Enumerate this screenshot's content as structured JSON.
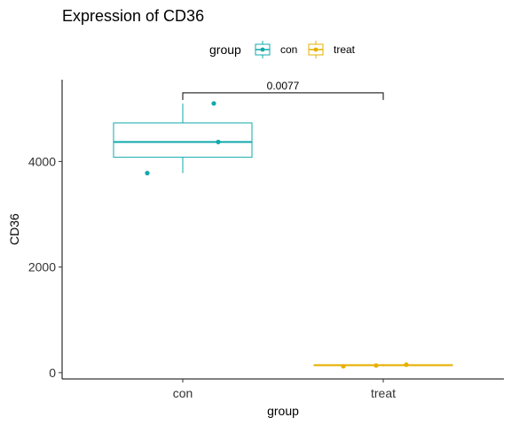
{
  "chart_data": {
    "type": "box",
    "title": "Expression of CD36",
    "xlabel": "group",
    "ylabel": "CD36",
    "categories": [
      "con",
      "treat"
    ],
    "ylim": [
      -120,
      5550
    ],
    "yticks": [
      0,
      2000,
      4000
    ],
    "grid": false,
    "legend": {
      "title": "group",
      "position": "top",
      "entries": [
        "con",
        "treat"
      ]
    },
    "colors": {
      "con": "#12A9AC",
      "treat": "#E6B000"
    },
    "boxes": [
      {
        "name": "con",
        "min": 3780,
        "q1": 4080,
        "median": 4370,
        "q3": 4730,
        "max": 5100
      },
      {
        "name": "treat",
        "min": 120,
        "q1": 135,
        "median": 140,
        "q3": 150,
        "max": 160
      }
    ],
    "points": [
      {
        "group": "con",
        "values": [
          3780,
          5100,
          4370
        ]
      },
      {
        "group": "treat",
        "values": [
          120,
          135,
          150
        ]
      }
    ],
    "comparisons": [
      {
        "groups": [
          "con",
          "treat"
        ],
        "label": "0.0077",
        "y": 5300
      }
    ]
  }
}
